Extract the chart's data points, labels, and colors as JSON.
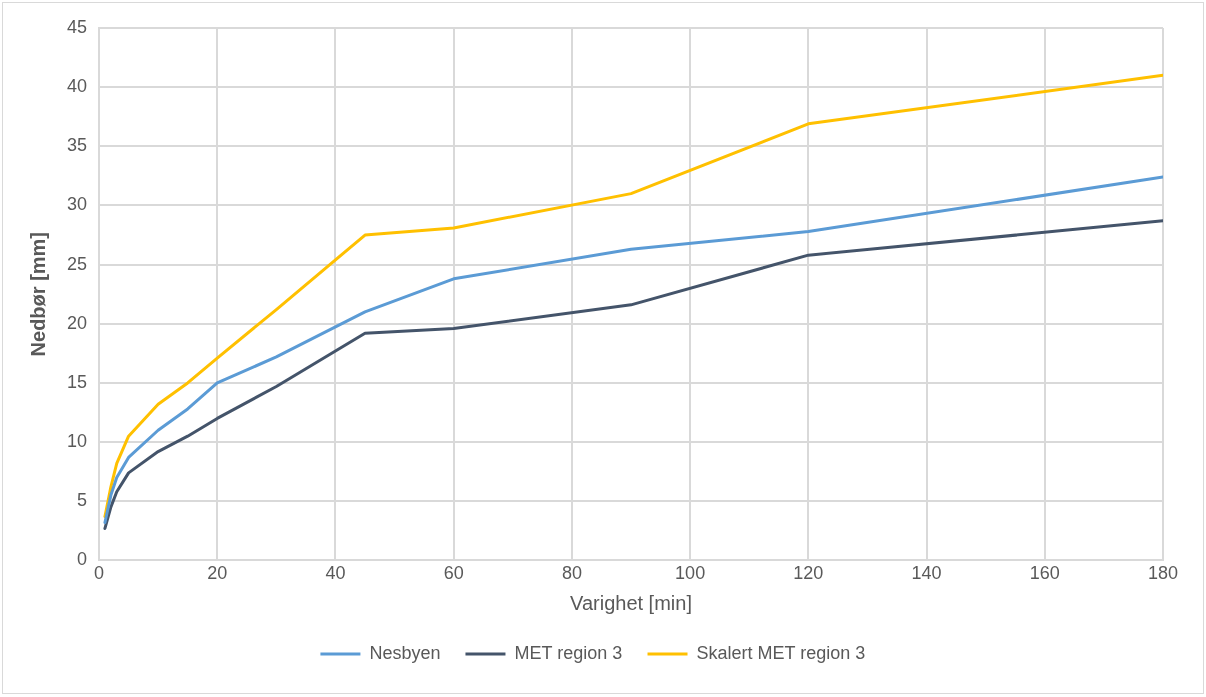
{
  "chart_data": {
    "type": "line",
    "xlabel": "Varighet [min]",
    "ylabel": "Nedbør [mm]",
    "x": [
      1,
      2,
      3,
      5,
      10,
      15,
      20,
      30,
      45,
      60,
      90,
      120,
      180
    ],
    "series": [
      {
        "name": "Nesbyen",
        "color": "#5b9bd5",
        "values": [
          3.2,
          5.5,
          7,
          8.7,
          11,
          12.8,
          15,
          17.2,
          21,
          23.8,
          26.3,
          27.8,
          32.4
        ]
      },
      {
        "name": "MET region 3",
        "color": "#44546a",
        "values": [
          2.7,
          4.5,
          5.8,
          7.4,
          9.2,
          10.5,
          12,
          14.7,
          19.2,
          19.6,
          21.6,
          25.8,
          28.7
        ]
      },
      {
        "name": "Skalert MET region 3",
        "color": "#ffc000",
        "values": [
          3.7,
          6.2,
          8.2,
          10.5,
          13.2,
          15,
          17.1,
          21.2,
          27.5,
          28.1,
          31,
          36.9,
          41
        ]
      }
    ],
    "xlim": [
      0,
      180
    ],
    "xticks": [
      0,
      20,
      40,
      60,
      80,
      100,
      120,
      140,
      160,
      180
    ],
    "ylim": [
      0,
      45
    ],
    "yticks": [
      0,
      5,
      10,
      15,
      20,
      25,
      30,
      35,
      40,
      45
    ],
    "grid": true,
    "legend": "bottom",
    "marker": "none",
    "line_style": "solid"
  }
}
